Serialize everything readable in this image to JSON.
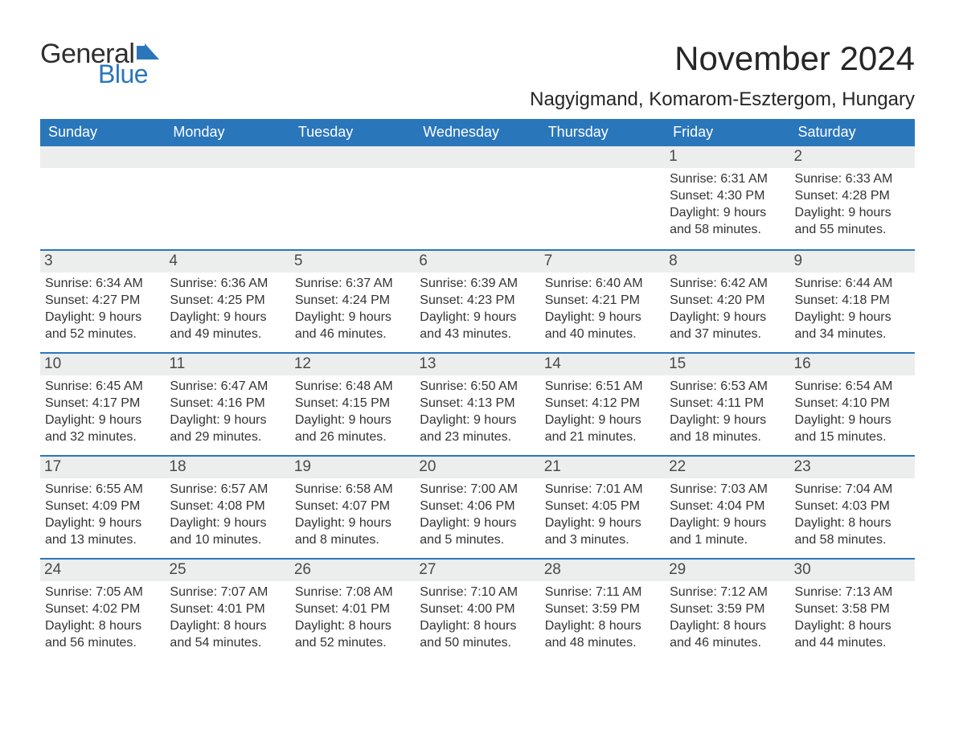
{
  "logo": {
    "text_general": "General",
    "text_blue": "Blue",
    "flag_color": "#2a76bb"
  },
  "title": "November 2024",
  "location": "Nagyigmand, Komarom-Esztergom, Hungary",
  "colors": {
    "header_bg": "#2a76bb",
    "header_text": "#ffffff",
    "daynum_bg": "#eceded",
    "daynum_text": "#4a4a4a",
    "body_text": "#333333",
    "page_bg": "#ffffff",
    "rule": "#2a76bb"
  },
  "typography": {
    "month_title_fontsize_pt": 32,
    "location_fontsize_pt": 18,
    "weekday_fontsize_pt": 14,
    "daynum_fontsize_pt": 14,
    "body_fontsize_pt": 12
  },
  "weekdays": [
    "Sunday",
    "Monday",
    "Tuesday",
    "Wednesday",
    "Thursday",
    "Friday",
    "Saturday"
  ],
  "weeks": [
    [
      {
        "blank": true
      },
      {
        "blank": true
      },
      {
        "blank": true
      },
      {
        "blank": true
      },
      {
        "blank": true
      },
      {
        "day": "1",
        "sunrise": "Sunrise: 6:31 AM",
        "sunset": "Sunset: 4:30 PM",
        "d1": "Daylight: 9 hours",
        "d2": "and 58 minutes."
      },
      {
        "day": "2",
        "sunrise": "Sunrise: 6:33 AM",
        "sunset": "Sunset: 4:28 PM",
        "d1": "Daylight: 9 hours",
        "d2": "and 55 minutes."
      }
    ],
    [
      {
        "day": "3",
        "sunrise": "Sunrise: 6:34 AM",
        "sunset": "Sunset: 4:27 PM",
        "d1": "Daylight: 9 hours",
        "d2": "and 52 minutes."
      },
      {
        "day": "4",
        "sunrise": "Sunrise: 6:36 AM",
        "sunset": "Sunset: 4:25 PM",
        "d1": "Daylight: 9 hours",
        "d2": "and 49 minutes."
      },
      {
        "day": "5",
        "sunrise": "Sunrise: 6:37 AM",
        "sunset": "Sunset: 4:24 PM",
        "d1": "Daylight: 9 hours",
        "d2": "and 46 minutes."
      },
      {
        "day": "6",
        "sunrise": "Sunrise: 6:39 AM",
        "sunset": "Sunset: 4:23 PM",
        "d1": "Daylight: 9 hours",
        "d2": "and 43 minutes."
      },
      {
        "day": "7",
        "sunrise": "Sunrise: 6:40 AM",
        "sunset": "Sunset: 4:21 PM",
        "d1": "Daylight: 9 hours",
        "d2": "and 40 minutes."
      },
      {
        "day": "8",
        "sunrise": "Sunrise: 6:42 AM",
        "sunset": "Sunset: 4:20 PM",
        "d1": "Daylight: 9 hours",
        "d2": "and 37 minutes."
      },
      {
        "day": "9",
        "sunrise": "Sunrise: 6:44 AM",
        "sunset": "Sunset: 4:18 PM",
        "d1": "Daylight: 9 hours",
        "d2": "and 34 minutes."
      }
    ],
    [
      {
        "day": "10",
        "sunrise": "Sunrise: 6:45 AM",
        "sunset": "Sunset: 4:17 PM",
        "d1": "Daylight: 9 hours",
        "d2": "and 32 minutes."
      },
      {
        "day": "11",
        "sunrise": "Sunrise: 6:47 AM",
        "sunset": "Sunset: 4:16 PM",
        "d1": "Daylight: 9 hours",
        "d2": "and 29 minutes."
      },
      {
        "day": "12",
        "sunrise": "Sunrise: 6:48 AM",
        "sunset": "Sunset: 4:15 PM",
        "d1": "Daylight: 9 hours",
        "d2": "and 26 minutes."
      },
      {
        "day": "13",
        "sunrise": "Sunrise: 6:50 AM",
        "sunset": "Sunset: 4:13 PM",
        "d1": "Daylight: 9 hours",
        "d2": "and 23 minutes."
      },
      {
        "day": "14",
        "sunrise": "Sunrise: 6:51 AM",
        "sunset": "Sunset: 4:12 PM",
        "d1": "Daylight: 9 hours",
        "d2": "and 21 minutes."
      },
      {
        "day": "15",
        "sunrise": "Sunrise: 6:53 AM",
        "sunset": "Sunset: 4:11 PM",
        "d1": "Daylight: 9 hours",
        "d2": "and 18 minutes."
      },
      {
        "day": "16",
        "sunrise": "Sunrise: 6:54 AM",
        "sunset": "Sunset: 4:10 PM",
        "d1": "Daylight: 9 hours",
        "d2": "and 15 minutes."
      }
    ],
    [
      {
        "day": "17",
        "sunrise": "Sunrise: 6:55 AM",
        "sunset": "Sunset: 4:09 PM",
        "d1": "Daylight: 9 hours",
        "d2": "and 13 minutes."
      },
      {
        "day": "18",
        "sunrise": "Sunrise: 6:57 AM",
        "sunset": "Sunset: 4:08 PM",
        "d1": "Daylight: 9 hours",
        "d2": "and 10 minutes."
      },
      {
        "day": "19",
        "sunrise": "Sunrise: 6:58 AM",
        "sunset": "Sunset: 4:07 PM",
        "d1": "Daylight: 9 hours",
        "d2": "and 8 minutes."
      },
      {
        "day": "20",
        "sunrise": "Sunrise: 7:00 AM",
        "sunset": "Sunset: 4:06 PM",
        "d1": "Daylight: 9 hours",
        "d2": "and 5 minutes."
      },
      {
        "day": "21",
        "sunrise": "Sunrise: 7:01 AM",
        "sunset": "Sunset: 4:05 PM",
        "d1": "Daylight: 9 hours",
        "d2": "and 3 minutes."
      },
      {
        "day": "22",
        "sunrise": "Sunrise: 7:03 AM",
        "sunset": "Sunset: 4:04 PM",
        "d1": "Daylight: 9 hours",
        "d2": "and 1 minute."
      },
      {
        "day": "23",
        "sunrise": "Sunrise: 7:04 AM",
        "sunset": "Sunset: 4:03 PM",
        "d1": "Daylight: 8 hours",
        "d2": "and 58 minutes."
      }
    ],
    [
      {
        "day": "24",
        "sunrise": "Sunrise: 7:05 AM",
        "sunset": "Sunset: 4:02 PM",
        "d1": "Daylight: 8 hours",
        "d2": "and 56 minutes."
      },
      {
        "day": "25",
        "sunrise": "Sunrise: 7:07 AM",
        "sunset": "Sunset: 4:01 PM",
        "d1": "Daylight: 8 hours",
        "d2": "and 54 minutes."
      },
      {
        "day": "26",
        "sunrise": "Sunrise: 7:08 AM",
        "sunset": "Sunset: 4:01 PM",
        "d1": "Daylight: 8 hours",
        "d2": "and 52 minutes."
      },
      {
        "day": "27",
        "sunrise": "Sunrise: 7:10 AM",
        "sunset": "Sunset: 4:00 PM",
        "d1": "Daylight: 8 hours",
        "d2": "and 50 minutes."
      },
      {
        "day": "28",
        "sunrise": "Sunrise: 7:11 AM",
        "sunset": "Sunset: 3:59 PM",
        "d1": "Daylight: 8 hours",
        "d2": "and 48 minutes."
      },
      {
        "day": "29",
        "sunrise": "Sunrise: 7:12 AM",
        "sunset": "Sunset: 3:59 PM",
        "d1": "Daylight: 8 hours",
        "d2": "and 46 minutes."
      },
      {
        "day": "30",
        "sunrise": "Sunrise: 7:13 AM",
        "sunset": "Sunset: 3:58 PM",
        "d1": "Daylight: 8 hours",
        "d2": "and 44 minutes."
      }
    ]
  ]
}
